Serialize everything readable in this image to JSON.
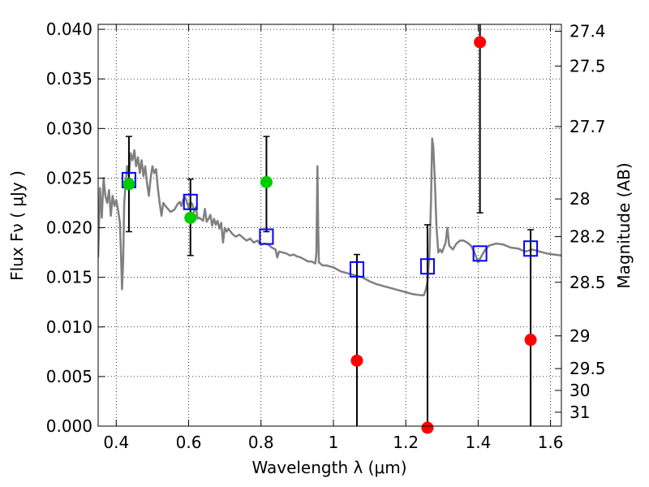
{
  "chart_data": {
    "type": "scatter",
    "xlabel": "Wavelength  λ (μm)",
    "ylabel": "Flux  Fν  ( μJy )",
    "ylabel_right": "Magnitude (AB)",
    "xlim": [
      0.35,
      1.63
    ],
    "ylim": [
      0.0,
      0.0405
    ],
    "grid": true,
    "x_ticks": [
      0.4,
      0.6,
      0.8,
      1.0,
      1.2,
      1.4,
      1.6
    ],
    "x_tick_labels": [
      "0.4",
      "0.6",
      "0.8",
      "1",
      "1.2",
      "1.4",
      "1.6"
    ],
    "y_ticks": [
      0.0,
      0.005,
      0.01,
      0.015,
      0.02,
      0.025,
      0.03,
      0.035,
      0.04
    ],
    "y_tick_labels": [
      "0.000",
      "0.005",
      "0.010",
      "0.015",
      "0.020",
      "0.025",
      "0.030",
      "0.035",
      "0.040"
    ],
    "right_ticks": [
      {
        "label": "27.4",
        "flux": 0.0398
      },
      {
        "label": "27.5",
        "flux": 0.0363
      },
      {
        "label": "27.7",
        "flux": 0.0302
      },
      {
        "label": "28",
        "flux": 0.0229
      },
      {
        "label": "28.2",
        "flux": 0.0191
      },
      {
        "label": "28.5",
        "flux": 0.0145
      },
      {
        "label": "29",
        "flux": 0.0091
      },
      {
        "label": "29.5",
        "flux": 0.0058
      },
      {
        "label": "30",
        "flux": 0.0036
      },
      {
        "label": "31",
        "flux": 0.0014
      }
    ],
    "series": [
      {
        "kind": "line",
        "color": "#808080",
        "points": [
          [
            0.35,
            0.017
          ],
          [
            0.355,
            0.024
          ],
          [
            0.36,
            0.021
          ],
          [
            0.365,
            0.025
          ],
          [
            0.37,
            0.0232
          ],
          [
            0.375,
            0.0225
          ],
          [
            0.38,
            0.0238
          ],
          [
            0.385,
            0.0212
          ],
          [
            0.39,
            0.0232
          ],
          [
            0.395,
            0.0222
          ],
          [
            0.4,
            0.0228
          ],
          [
            0.405,
            0.0218
          ],
          [
            0.41,
            0.0205
          ],
          [
            0.413,
            0.0175
          ],
          [
            0.416,
            0.0138
          ],
          [
            0.419,
            0.0165
          ],
          [
            0.422,
            0.0225
          ],
          [
            0.426,
            0.0244
          ],
          [
            0.43,
            0.0262
          ],
          [
            0.435,
            0.0252
          ],
          [
            0.44,
            0.0275
          ],
          [
            0.445,
            0.0268
          ],
          [
            0.45,
            0.0278
          ],
          [
            0.455,
            0.0262
          ],
          [
            0.46,
            0.0271
          ],
          [
            0.465,
            0.0255
          ],
          [
            0.47,
            0.0268
          ],
          [
            0.475,
            0.0252
          ],
          [
            0.48,
            0.0262
          ],
          [
            0.485,
            0.0245
          ],
          [
            0.49,
            0.0232
          ],
          [
            0.495,
            0.025
          ],
          [
            0.5,
            0.0262
          ],
          [
            0.505,
            0.0255
          ],
          [
            0.51,
            0.0259
          ],
          [
            0.515,
            0.024
          ],
          [
            0.52,
            0.0225
          ],
          [
            0.525,
            0.0212
          ],
          [
            0.53,
            0.0225
          ],
          [
            0.54,
            0.022
          ],
          [
            0.55,
            0.0216
          ],
          [
            0.56,
            0.0218
          ],
          [
            0.57,
            0.0224
          ],
          [
            0.575,
            0.0226
          ],
          [
            0.58,
            0.0222
          ],
          [
            0.585,
            0.0228
          ],
          [
            0.59,
            0.0231
          ],
          [
            0.595,
            0.0226
          ],
          [
            0.6,
            0.022
          ],
          [
            0.605,
            0.0226
          ],
          [
            0.61,
            0.0224
          ],
          [
            0.615,
            0.0216
          ],
          [
            0.62,
            0.0221
          ],
          [
            0.625,
            0.0209
          ],
          [
            0.63,
            0.021
          ],
          [
            0.64,
            0.0207
          ],
          [
            0.645,
            0.0219
          ],
          [
            0.65,
            0.0206
          ],
          [
            0.655,
            0.0209
          ],
          [
            0.66,
            0.0213
          ],
          [
            0.665,
            0.0202
          ],
          [
            0.67,
            0.0209
          ],
          [
            0.675,
            0.0203
          ],
          [
            0.68,
            0.0207
          ],
          [
            0.685,
            0.0199
          ],
          [
            0.69,
            0.0205
          ],
          [
            0.695,
            0.0185
          ],
          [
            0.7,
            0.02
          ],
          [
            0.705,
            0.0196
          ],
          [
            0.71,
            0.0199
          ],
          [
            0.72,
            0.0194
          ],
          [
            0.73,
            0.0191
          ],
          [
            0.74,
            0.0193
          ],
          [
            0.75,
            0.019
          ],
          [
            0.76,
            0.0187
          ],
          [
            0.77,
            0.0189
          ],
          [
            0.78,
            0.0185
          ],
          [
            0.79,
            0.0187
          ],
          [
            0.8,
            0.0183
          ],
          [
            0.81,
            0.0184
          ],
          [
            0.82,
            0.0183
          ],
          [
            0.83,
            0.018
          ],
          [
            0.84,
            0.0178
          ],
          [
            0.845,
            0.017
          ],
          [
            0.85,
            0.0176
          ],
          [
            0.86,
            0.0175
          ],
          [
            0.87,
            0.0174
          ],
          [
            0.88,
            0.0172
          ],
          [
            0.89,
            0.0173
          ],
          [
            0.9,
            0.0171
          ],
          [
            0.91,
            0.017
          ],
          [
            0.92,
            0.0168
          ],
          [
            0.93,
            0.0166
          ],
          [
            0.94,
            0.0166
          ],
          [
            0.95,
            0.0164
          ],
          [
            0.953,
            0.0175
          ],
          [
            0.956,
            0.0262
          ],
          [
            0.958,
            0.02
          ],
          [
            0.96,
            0.0165
          ],
          [
            0.97,
            0.0162
          ],
          [
            0.98,
            0.0162
          ],
          [
            1.0,
            0.016
          ],
          [
            1.02,
            0.0156
          ],
          [
            1.04,
            0.0154
          ],
          [
            1.06,
            0.0152
          ],
          [
            1.08,
            0.015
          ],
          [
            1.1,
            0.0146
          ],
          [
            1.12,
            0.0143
          ],
          [
            1.14,
            0.0141
          ],
          [
            1.16,
            0.0139
          ],
          [
            1.18,
            0.0137
          ],
          [
            1.2,
            0.0135
          ],
          [
            1.22,
            0.0133
          ],
          [
            1.24,
            0.0132
          ],
          [
            1.25,
            0.0132
          ],
          [
            1.255,
            0.0137
          ],
          [
            1.26,
            0.0145
          ],
          [
            1.265,
            0.017
          ],
          [
            1.27,
            0.023
          ],
          [
            1.273,
            0.029
          ],
          [
            1.276,
            0.0282
          ],
          [
            1.28,
            0.025
          ],
          [
            1.285,
            0.02
          ],
          [
            1.29,
            0.0175
          ],
          [
            1.295,
            0.0178
          ],
          [
            1.3,
            0.0175
          ],
          [
            1.31,
            0.0185
          ],
          [
            1.315,
            0.02
          ],
          [
            1.32,
            0.0182
          ],
          [
            1.33,
            0.0178
          ],
          [
            1.34,
            0.0184
          ],
          [
            1.35,
            0.0187
          ],
          [
            1.36,
            0.0187
          ],
          [
            1.37,
            0.0185
          ],
          [
            1.38,
            0.0182
          ],
          [
            1.39,
            0.0175
          ],
          [
            1.4,
            0.0165
          ],
          [
            1.41,
            0.0172
          ],
          [
            1.42,
            0.0178
          ],
          [
            1.43,
            0.0182
          ],
          [
            1.45,
            0.0184
          ],
          [
            1.47,
            0.0183
          ],
          [
            1.49,
            0.018
          ],
          [
            1.51,
            0.0179
          ],
          [
            1.53,
            0.0176
          ],
          [
            1.55,
            0.0178
          ],
          [
            1.57,
            0.0176
          ],
          [
            1.59,
            0.0174
          ],
          [
            1.61,
            0.0173
          ],
          [
            1.63,
            0.0172
          ]
        ]
      },
      {
        "kind": "scatter",
        "marker": "open-square",
        "color": "#0000ff",
        "points": [
          {
            "x": 0.435,
            "y": 0.0248,
            "yerr_low": 0.0196,
            "yerr_high": 0.0292
          },
          {
            "x": 0.605,
            "y": 0.0226,
            "yerr_low": 0.0172,
            "yerr_high": 0.0249
          },
          {
            "x": 0.815,
            "y": 0.0191,
            "yerr_low": null,
            "yerr_high": null
          },
          {
            "x": 1.065,
            "y": 0.0158,
            "yerr_low": 0.0,
            "yerr_high": 0.0173
          },
          {
            "x": 1.26,
            "y": 0.0161,
            "yerr_low": 0.0,
            "yerr_high": 0.0203
          },
          {
            "x": 1.405,
            "y": 0.0174,
            "yerr_low": null,
            "yerr_high": null
          },
          {
            "x": 1.545,
            "y": 0.0179,
            "yerr_low": 0.0,
            "yerr_high": 0.0198
          }
        ]
      },
      {
        "kind": "scatter",
        "marker": "filled-circle",
        "color": "#00cc00",
        "points": [
          {
            "x": 0.435,
            "y": 0.0244
          },
          {
            "x": 0.605,
            "y": 0.021
          },
          {
            "x": 0.815,
            "y": 0.0246,
            "yerr_low": 0.0196,
            "yerr_high": 0.0292
          }
        ]
      },
      {
        "kind": "scatter",
        "marker": "filled-circle",
        "color": "#ff0000",
        "points": [
          {
            "x": 1.065,
            "y": 0.0066
          },
          {
            "x": 1.26,
            "y": -0.0002
          },
          {
            "x": 1.405,
            "y": 0.0387,
            "yerr_low": 0.0215,
            "yerr_high": 0.0405
          },
          {
            "x": 1.545,
            "y": 0.0087
          }
        ]
      }
    ]
  }
}
